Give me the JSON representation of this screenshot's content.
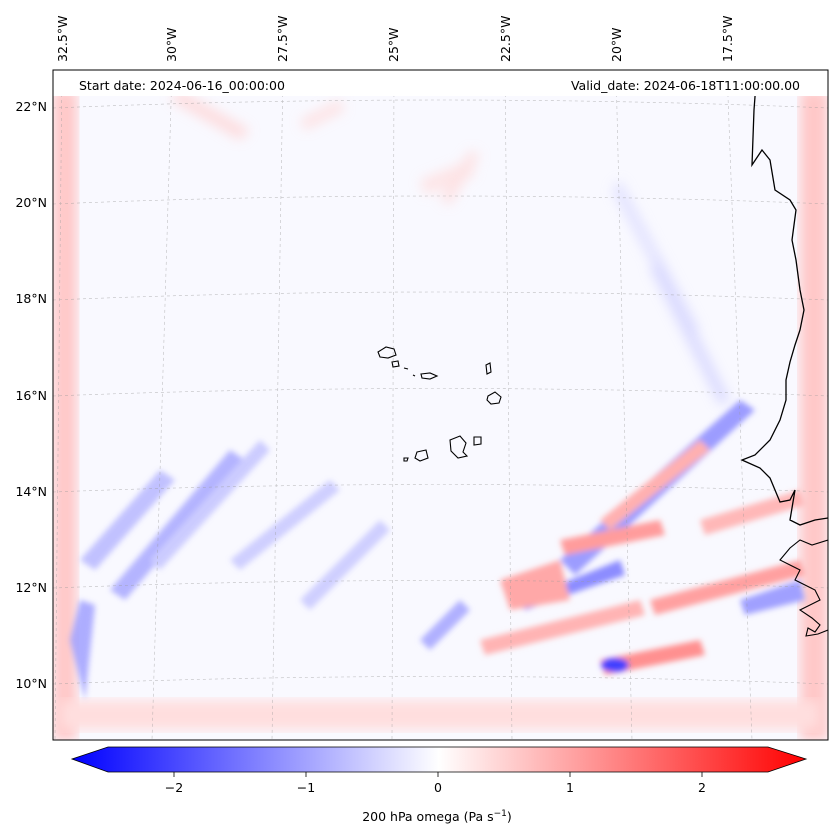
{
  "header": {
    "start_date": "Start date: 2024-06-16_00:00:00",
    "valid_date": "Valid_date: 2024-06-18T11:00:00.00"
  },
  "map": {
    "lon_labels": [
      "32.5°W",
      "30°W",
      "27.5°W",
      "25°W",
      "22.5°W",
      "20°W",
      "17.5°W"
    ],
    "lat_labels": [
      "22°N",
      "20°N",
      "18°N",
      "16°N",
      "14°N",
      "12°N",
      "10°N"
    ],
    "field": "200 hPa omega",
    "colors": {
      "negative": "#0000ff",
      "zero": "#ffffff",
      "positive": "#ff0000",
      "coast": "#000000"
    }
  },
  "colorbar": {
    "label": "200 hPa omega (Pa s",
    "label_sup": "−1",
    "label_end": ")",
    "ticks": [
      "−2",
      "−1",
      "0",
      "1",
      "2"
    ],
    "range": [
      -2.75,
      2.75
    ]
  }
}
